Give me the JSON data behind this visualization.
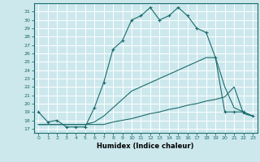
{
  "xlabel": "Humidex (Indice chaleur)",
  "bg_color": "#cce8ed",
  "grid_color": "#ffffff",
  "line_color": "#1a6b6b",
  "xlim": [
    -0.5,
    23.5
  ],
  "ylim": [
    16.5,
    32
  ],
  "yticks": [
    17,
    18,
    19,
    20,
    21,
    22,
    23,
    24,
    25,
    26,
    27,
    28,
    29,
    30,
    31
  ],
  "xticks": [
    0,
    1,
    2,
    3,
    4,
    5,
    6,
    7,
    8,
    9,
    10,
    11,
    12,
    13,
    14,
    15,
    16,
    17,
    18,
    19,
    20,
    21,
    22,
    23
  ],
  "series": [
    {
      "x": [
        0,
        1,
        2,
        3,
        4,
        5,
        6,
        7,
        8,
        9,
        10,
        11,
        12,
        13,
        14,
        15,
        16,
        17,
        18,
        19,
        20,
        21,
        22,
        23
      ],
      "y": [
        19,
        17.8,
        18,
        17.2,
        17.2,
        17.2,
        19.5,
        22.5,
        26.5,
        27.5,
        30,
        30.5,
        31.5,
        30,
        30.5,
        31.5,
        30.5,
        29,
        28.5,
        25.5,
        19,
        19,
        19,
        18.5
      ],
      "marker": "+"
    },
    {
      "x": [
        0,
        1,
        2,
        3,
        4,
        5,
        6,
        7,
        8,
        9,
        10,
        11,
        12,
        13,
        14,
        15,
        16,
        17,
        18,
        19,
        20,
        21,
        22,
        23
      ],
      "y": [
        17.5,
        17.5,
        17.5,
        17.5,
        17.5,
        17.5,
        17.5,
        17.5,
        17.8,
        18.0,
        18.2,
        18.5,
        18.8,
        19.0,
        19.3,
        19.5,
        19.8,
        20.0,
        20.3,
        20.5,
        20.8,
        22.0,
        18.8,
        18.5
      ],
      "marker": null
    },
    {
      "x": [
        0,
        1,
        2,
        3,
        4,
        5,
        6,
        7,
        8,
        9,
        10,
        11,
        12,
        13,
        14,
        15,
        16,
        17,
        18,
        19,
        20,
        21,
        22,
        23
      ],
      "y": [
        17.5,
        17.5,
        17.5,
        17.5,
        17.5,
        17.5,
        17.8,
        18.5,
        19.5,
        20.5,
        21.5,
        22.0,
        22.5,
        23.0,
        23.5,
        24.0,
        24.5,
        25.0,
        25.5,
        25.5,
        22.0,
        19.5,
        19.0,
        18.5
      ],
      "marker": null
    }
  ]
}
